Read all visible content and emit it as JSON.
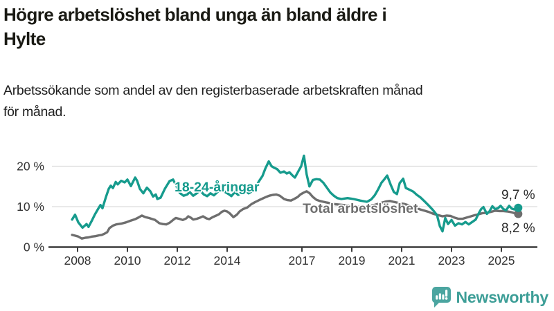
{
  "header": {
    "title_line1": "Högre arbetslöshet bland unga än bland äldre i",
    "title_line2": "Hylte",
    "subtitle_line1": "Arbetssökande som andel av den registerbaserade arbetskraften månad",
    "subtitle_line2": "för månad."
  },
  "footer": {
    "brand": "Newsworthy"
  },
  "colors": {
    "youth_line": "#169b8d",
    "total_line": "#6e6e6e",
    "axis": "#3c3c3c",
    "grid": "#dcdcdc",
    "tick_text": "#333333",
    "end_label_text": "#2a2a2a",
    "logo_teal": "#4ba5a0"
  },
  "chart_data": {
    "type": "line",
    "title": "Högre arbetslöshet bland unga än bland äldre i Hylte",
    "subtitle": "Arbetssökande som andel av den registerbaserade arbetskraften månad för månad.",
    "xlabel": "",
    "ylabel": "",
    "xlim": [
      2007.7,
      2025.75
    ],
    "ylim": [
      0,
      23.5
    ],
    "grid": "horizontal",
    "legend_position": "inline-labels",
    "x_ticks": [
      2008,
      2010,
      2012,
      2014,
      2017,
      2019,
      2021,
      2023,
      2025
    ],
    "x_tick_labels": [
      "2008",
      "2010",
      "2012",
      "2014",
      "2017",
      "2019",
      "2021",
      "2023",
      "2025"
    ],
    "y_ticks": [
      0,
      10,
      20
    ],
    "y_tick_labels": [
      "0 %",
      "10 %",
      "20 %"
    ],
    "series": [
      {
        "name": "Total arbetslöshet",
        "color": "#6e6e6e",
        "end_label": "8,2 %",
        "end_value": 8.2,
        "points": [
          [
            2007.78,
            3.0
          ],
          [
            2007.92,
            2.8
          ],
          [
            2008.03,
            2.6
          ],
          [
            2008.17,
            2.1
          ],
          [
            2008.31,
            2.3
          ],
          [
            2008.44,
            2.4
          ],
          [
            2008.58,
            2.6
          ],
          [
            2008.72,
            2.7
          ],
          [
            2008.86,
            2.9
          ],
          [
            2008.97,
            3.0
          ],
          [
            2009.08,
            3.3
          ],
          [
            2009.19,
            3.7
          ],
          [
            2009.28,
            4.7
          ],
          [
            2009.42,
            5.3
          ],
          [
            2009.55,
            5.6
          ],
          [
            2009.75,
            5.8
          ],
          [
            2009.94,
            6.1
          ],
          [
            2010.11,
            6.5
          ],
          [
            2010.31,
            6.9
          ],
          [
            2010.44,
            7.3
          ],
          [
            2010.58,
            7.8
          ],
          [
            2010.72,
            7.4
          ],
          [
            2010.86,
            7.2
          ],
          [
            2010.97,
            7.0
          ],
          [
            2011.11,
            6.7
          ],
          [
            2011.28,
            5.9
          ],
          [
            2011.42,
            5.7
          ],
          [
            2011.56,
            5.6
          ],
          [
            2011.69,
            6.0
          ],
          [
            2011.83,
            6.7
          ],
          [
            2011.94,
            7.2
          ],
          [
            2012.08,
            7.0
          ],
          [
            2012.22,
            6.7
          ],
          [
            2012.36,
            7.1
          ],
          [
            2012.44,
            7.6
          ],
          [
            2012.56,
            7.2
          ],
          [
            2012.64,
            6.8
          ],
          [
            2012.78,
            7.0
          ],
          [
            2012.92,
            7.3
          ],
          [
            2013.03,
            7.6
          ],
          [
            2013.17,
            7.1
          ],
          [
            2013.28,
            6.9
          ],
          [
            2013.42,
            7.4
          ],
          [
            2013.56,
            7.8
          ],
          [
            2013.67,
            8.1
          ],
          [
            2013.78,
            8.7
          ],
          [
            2013.89,
            9.0
          ],
          [
            2014.0,
            8.8
          ],
          [
            2014.11,
            8.3
          ],
          [
            2014.25,
            7.4
          ],
          [
            2014.39,
            8.0
          ],
          [
            2014.5,
            8.8
          ],
          [
            2014.64,
            9.4
          ],
          [
            2014.81,
            9.8
          ],
          [
            2014.97,
            10.6
          ],
          [
            2015.11,
            11.1
          ],
          [
            2015.28,
            11.6
          ],
          [
            2015.42,
            12.0
          ],
          [
            2015.56,
            12.4
          ],
          [
            2015.69,
            12.7
          ],
          [
            2015.83,
            12.9
          ],
          [
            2015.97,
            13.0
          ],
          [
            2016.11,
            12.7
          ],
          [
            2016.28,
            11.9
          ],
          [
            2016.42,
            11.6
          ],
          [
            2016.56,
            11.5
          ],
          [
            2016.69,
            11.9
          ],
          [
            2016.83,
            12.4
          ],
          [
            2016.94,
            13.0
          ],
          [
            2017.08,
            13.5
          ],
          [
            2017.19,
            13.8
          ],
          [
            2017.31,
            13.3
          ],
          [
            2017.44,
            12.4
          ],
          [
            2017.58,
            11.7
          ],
          [
            2017.72,
            11.4
          ],
          [
            2017.86,
            11.2
          ],
          [
            2018.0,
            11.0
          ],
          [
            2018.17,
            10.8
          ],
          [
            2018.33,
            10.6
          ],
          [
            2018.5,
            10.5
          ],
          [
            2018.67,
            10.4
          ],
          [
            2018.86,
            10.3
          ],
          [
            2019.03,
            10.1
          ],
          [
            2019.19,
            10.0
          ],
          [
            2019.36,
            9.9
          ],
          [
            2019.56,
            10.0
          ],
          [
            2019.72,
            10.2
          ],
          [
            2019.89,
            10.4
          ],
          [
            2020.06,
            10.7
          ],
          [
            2020.22,
            11.0
          ],
          [
            2020.39,
            11.3
          ],
          [
            2020.53,
            11.4
          ],
          [
            2020.67,
            11.2
          ],
          [
            2020.81,
            11.0
          ],
          [
            2020.94,
            10.8
          ],
          [
            2021.08,
            10.7
          ],
          [
            2021.25,
            10.4
          ],
          [
            2021.42,
            10.1
          ],
          [
            2021.58,
            9.7
          ],
          [
            2021.75,
            9.3
          ],
          [
            2021.92,
            9.0
          ],
          [
            2022.08,
            8.7
          ],
          [
            2022.28,
            8.2
          ],
          [
            2022.47,
            7.9
          ],
          [
            2022.64,
            7.6
          ],
          [
            2022.81,
            7.8
          ],
          [
            2022.97,
            7.7
          ],
          [
            2023.11,
            7.3
          ],
          [
            2023.28,
            7.0
          ],
          [
            2023.44,
            7.0
          ],
          [
            2023.61,
            7.3
          ],
          [
            2023.78,
            7.6
          ],
          [
            2023.94,
            7.9
          ],
          [
            2024.08,
            8.1
          ],
          [
            2024.25,
            8.4
          ],
          [
            2024.42,
            8.5
          ],
          [
            2024.58,
            8.7
          ],
          [
            2024.75,
            9.0
          ],
          [
            2024.92,
            8.9
          ],
          [
            2025.08,
            8.9
          ],
          [
            2025.25,
            8.8
          ],
          [
            2025.42,
            8.6
          ],
          [
            2025.62,
            8.2
          ]
        ]
      },
      {
        "name": "18-24-åringar",
        "color": "#169b8d",
        "end_label": "9,7 %",
        "end_value": 9.7,
        "points": [
          [
            2007.78,
            6.8
          ],
          [
            2007.9,
            8.0
          ],
          [
            2008.03,
            6.1
          ],
          [
            2008.2,
            4.8
          ],
          [
            2008.36,
            5.7
          ],
          [
            2008.44,
            5.0
          ],
          [
            2008.56,
            6.4
          ],
          [
            2008.69,
            8.0
          ],
          [
            2008.83,
            9.5
          ],
          [
            2008.92,
            10.4
          ],
          [
            2009.0,
            9.6
          ],
          [
            2009.14,
            12.4
          ],
          [
            2009.25,
            14.4
          ],
          [
            2009.33,
            15.2
          ],
          [
            2009.42,
            14.6
          ],
          [
            2009.53,
            16.1
          ],
          [
            2009.61,
            15.5
          ],
          [
            2009.75,
            16.4
          ],
          [
            2009.89,
            16.0
          ],
          [
            2010.0,
            16.7
          ],
          [
            2010.14,
            15.1
          ],
          [
            2010.31,
            17.2
          ],
          [
            2010.39,
            16.4
          ],
          [
            2010.5,
            14.4
          ],
          [
            2010.64,
            13.3
          ],
          [
            2010.78,
            14.7
          ],
          [
            2010.92,
            13.8
          ],
          [
            2011.03,
            12.5
          ],
          [
            2011.14,
            13.0
          ],
          [
            2011.2,
            11.9
          ],
          [
            2011.33,
            12.2
          ],
          [
            2011.5,
            14.4
          ],
          [
            2011.69,
            16.3
          ],
          [
            2011.83,
            16.7
          ],
          [
            2011.97,
            15.0
          ],
          [
            2012.1,
            13.4
          ],
          [
            2012.25,
            12.7
          ],
          [
            2012.4,
            13.0
          ],
          [
            2012.5,
            13.6
          ],
          [
            2012.64,
            12.7
          ],
          [
            2012.78,
            13.3
          ],
          [
            2012.92,
            14.0
          ],
          [
            2013.06,
            13.0
          ],
          [
            2013.2,
            12.6
          ],
          [
            2013.33,
            13.3
          ],
          [
            2013.47,
            12.8
          ],
          [
            2013.61,
            13.6
          ],
          [
            2013.78,
            14.5
          ],
          [
            2013.92,
            13.6
          ],
          [
            2014.06,
            13.1
          ],
          [
            2014.17,
            12.6
          ],
          [
            2014.31,
            13.6
          ],
          [
            2014.44,
            12.9
          ],
          [
            2014.58,
            13.4
          ],
          [
            2014.72,
            14.1
          ],
          [
            2014.86,
            13.3
          ],
          [
            2015.0,
            13.8
          ],
          [
            2015.14,
            14.8
          ],
          [
            2015.28,
            16.3
          ],
          [
            2015.42,
            17.6
          ],
          [
            2015.53,
            19.4
          ],
          [
            2015.67,
            21.2
          ],
          [
            2015.78,
            20.0
          ],
          [
            2015.89,
            19.6
          ],
          [
            2016.0,
            19.3
          ],
          [
            2016.14,
            18.4
          ],
          [
            2016.28,
            18.7
          ],
          [
            2016.39,
            18.2
          ],
          [
            2016.5,
            18.5
          ],
          [
            2016.64,
            17.6
          ],
          [
            2016.72,
            17.2
          ],
          [
            2016.86,
            18.8
          ],
          [
            2016.97,
            20.0
          ],
          [
            2017.08,
            22.6
          ],
          [
            2017.19,
            18.0
          ],
          [
            2017.3,
            15.0
          ],
          [
            2017.44,
            16.6
          ],
          [
            2017.58,
            16.8
          ],
          [
            2017.72,
            16.7
          ],
          [
            2017.86,
            15.9
          ],
          [
            2018.0,
            14.7
          ],
          [
            2018.14,
            13.5
          ],
          [
            2018.28,
            12.7
          ],
          [
            2018.42,
            12.1
          ],
          [
            2018.58,
            11.9
          ],
          [
            2018.83,
            12.1
          ],
          [
            2019.06,
            11.9
          ],
          [
            2019.33,
            11.5
          ],
          [
            2019.61,
            11.2
          ],
          [
            2019.78,
            11.8
          ],
          [
            2019.92,
            12.8
          ],
          [
            2020.06,
            14.3
          ],
          [
            2020.19,
            15.9
          ],
          [
            2020.31,
            16.8
          ],
          [
            2020.42,
            17.7
          ],
          [
            2020.56,
            15.4
          ],
          [
            2020.69,
            13.6
          ],
          [
            2020.81,
            13.1
          ],
          [
            2020.92,
            15.8
          ],
          [
            2021.06,
            16.9
          ],
          [
            2021.17,
            14.6
          ],
          [
            2021.31,
            14.2
          ],
          [
            2021.47,
            13.7
          ],
          [
            2021.61,
            12.9
          ],
          [
            2021.75,
            12.3
          ],
          [
            2021.92,
            11.3
          ],
          [
            2022.08,
            10.3
          ],
          [
            2022.25,
            9.2
          ],
          [
            2022.42,
            7.9
          ],
          [
            2022.53,
            5.2
          ],
          [
            2022.64,
            3.9
          ],
          [
            2022.75,
            7.2
          ],
          [
            2022.86,
            5.7
          ],
          [
            2023.0,
            6.7
          ],
          [
            2023.14,
            5.3
          ],
          [
            2023.28,
            5.9
          ],
          [
            2023.42,
            5.6
          ],
          [
            2023.56,
            6.2
          ],
          [
            2023.69,
            5.6
          ],
          [
            2023.83,
            6.2
          ],
          [
            2023.97,
            6.8
          ],
          [
            2024.08,
            8.2
          ],
          [
            2024.19,
            9.4
          ],
          [
            2024.28,
            9.9
          ],
          [
            2024.42,
            8.2
          ],
          [
            2024.53,
            8.9
          ],
          [
            2024.64,
            10.1
          ],
          [
            2024.75,
            9.4
          ],
          [
            2024.86,
            9.6
          ],
          [
            2024.97,
            10.2
          ],
          [
            2025.08,
            9.4
          ],
          [
            2025.19,
            9.1
          ],
          [
            2025.31,
            10.2
          ],
          [
            2025.42,
            9.5
          ],
          [
            2025.53,
            9.3
          ],
          [
            2025.62,
            9.7
          ]
        ]
      }
    ]
  }
}
